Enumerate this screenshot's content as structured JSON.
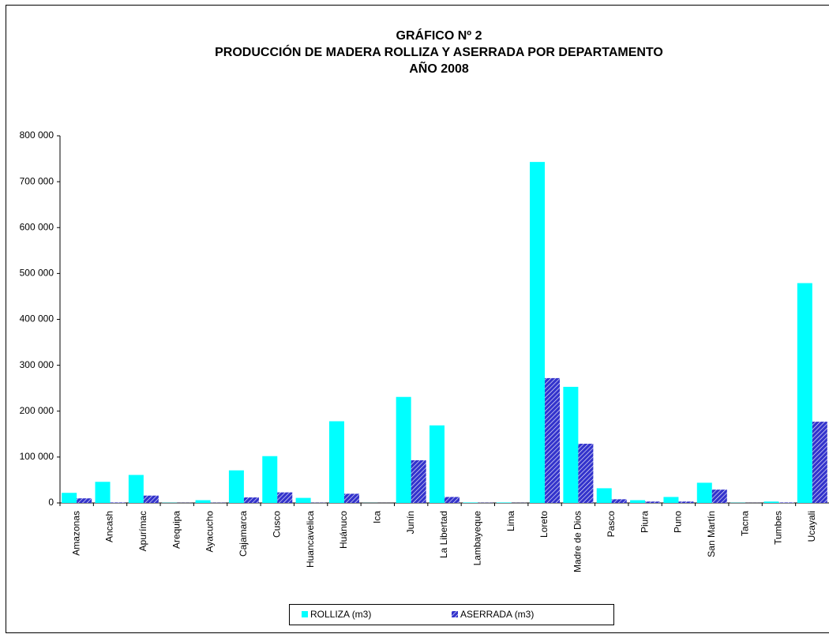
{
  "chart_data": {
    "type": "bar",
    "title": [
      "GRÁFICO Nº 2",
      "PRODUCCIÓN DE MADERA ROLLIZA  Y ASERRADA POR DEPARTAMENTO",
      "AÑO 2008"
    ],
    "categories": [
      "Amazonas",
      "Ancash",
      "Apurímac",
      "Arequipa",
      "Ayacucho",
      "Cajamarca",
      "Cusco",
      "Huancavelica",
      "Huánuco",
      "Ica",
      "Junín",
      "La Libertad",
      "Lambayeque",
      "Lima",
      "Loreto",
      "Madre de Dios",
      "Pasco",
      "Piura",
      "Puno",
      "San Martín",
      "Tacna",
      "Tumbes",
      "Ucayali"
    ],
    "series": [
      {
        "name": "ROLLIZA (m3)",
        "color": "#00FFFF",
        "values": [
          22000,
          46000,
          61000,
          500,
          6000,
          71000,
          102000,
          11000,
          178000,
          200,
          231000,
          169000,
          1000,
          1000,
          743000,
          253000,
          32000,
          6000,
          13000,
          44000,
          500,
          3000,
          479000
        ]
      },
      {
        "name": "ASERRADA (m3)",
        "color": "#3333CC",
        "pattern": "hatched",
        "values": [
          10000,
          1000,
          16000,
          300,
          500,
          12000,
          23000,
          500,
          20000,
          100,
          93000,
          13000,
          500,
          300,
          272000,
          129000,
          8000,
          3000,
          3000,
          29000,
          200,
          1000,
          177000
        ]
      }
    ],
    "ylim": [
      0,
      800000
    ],
    "yticks": [
      0,
      {
        "value": 100000,
        "label": "100 000"
      },
      {
        "value": 200000,
        "label": "200 000"
      },
      {
        "value": 300000,
        "label": "300 000"
      },
      {
        "value": 400000,
        "label": "400 000"
      },
      {
        "value": 500000,
        "label": "500 000"
      },
      {
        "value": 600000,
        "label": "600 000"
      },
      {
        "value": 700000,
        "label": "700 000"
      },
      {
        "value": 800000,
        "label": "800 000"
      }
    ],
    "legend": "bottom"
  }
}
